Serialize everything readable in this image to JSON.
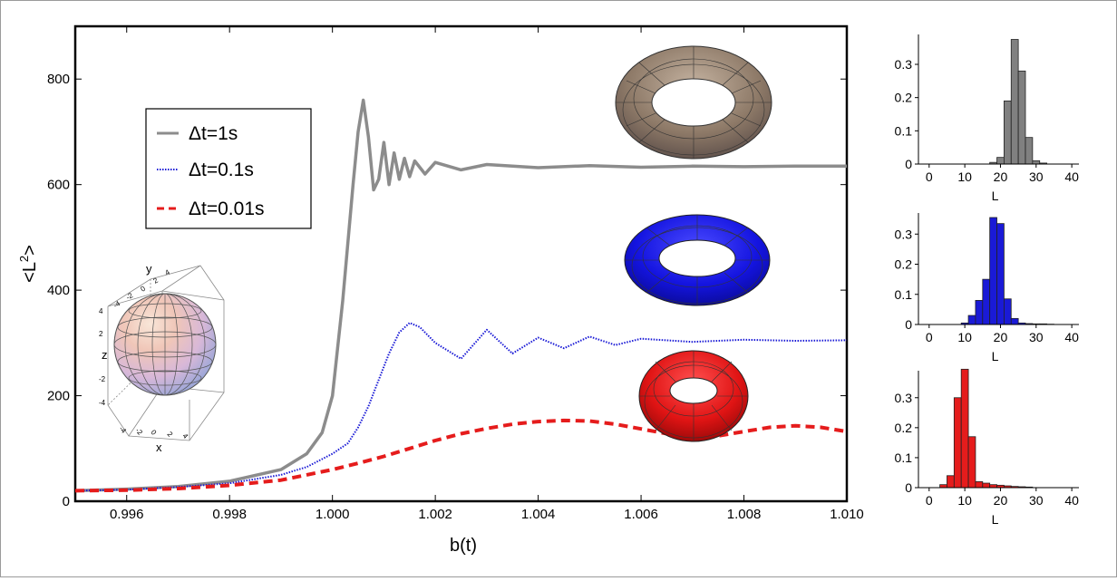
{
  "colors": {
    "series1": "#8c8c8c",
    "series2": "#1a1ad6",
    "series3": "#e51c1c",
    "torus_gray": "#8a7a6c",
    "torus_blue": "#1414e0",
    "torus_red": "#e01414"
  },
  "chart_data": [
    {
      "type": "line",
      "xlabel": "b(t)",
      "ylabel": "<L",
      "ylabel_sup": "2",
      "ylabel_end": ">",
      "xlim": [
        0.995,
        1.01
      ],
      "ylim": [
        0,
        900
      ],
      "xticks": [
        "0.996",
        "0.998",
        "1.000",
        "1.002",
        "1.004",
        "1.006",
        "1.008",
        "1.010"
      ],
      "yticks": [
        "0",
        "200",
        "400",
        "600",
        "800"
      ],
      "legend_position": "top-left",
      "series": [
        {
          "name": "Δt=1s",
          "style": "solid",
          "color": "#8c8c8c",
          "x": [
            0.995,
            0.996,
            0.997,
            0.998,
            0.999,
            0.9995,
            0.9998,
            1.0,
            1.0002,
            1.0004,
            1.0005,
            1.0006,
            1.0007,
            1.0008,
            1.0009,
            1.001,
            1.0011,
            1.0012,
            1.0013,
            1.0014,
            1.0015,
            1.0016,
            1.0018,
            1.002,
            1.0025,
            1.003,
            1.004,
            1.005,
            1.006,
            1.007,
            1.008,
            1.009,
            1.01
          ],
          "y": [
            20,
            23,
            28,
            38,
            60,
            90,
            130,
            200,
            380,
            600,
            700,
            760,
            690,
            590,
            610,
            680,
            600,
            660,
            610,
            650,
            615,
            645,
            620,
            642,
            628,
            638,
            632,
            636,
            633,
            635,
            634,
            635,
            635
          ]
        },
        {
          "name": "Δt=0.1s",
          "style": "dotted",
          "color": "#1a1ad6",
          "x": [
            0.995,
            0.996,
            0.997,
            0.998,
            0.999,
            0.9995,
            1.0,
            1.0003,
            1.0005,
            1.0007,
            1.0009,
            1.0011,
            1.0013,
            1.0015,
            1.0017,
            1.002,
            1.0025,
            1.003,
            1.0035,
            1.004,
            1.0045,
            1.005,
            1.0055,
            1.006,
            1.007,
            1.008,
            1.009,
            1.01
          ],
          "y": [
            20,
            22,
            27,
            34,
            50,
            65,
            90,
            110,
            140,
            180,
            230,
            280,
            320,
            338,
            330,
            300,
            270,
            325,
            280,
            310,
            290,
            312,
            296,
            308,
            302,
            306,
            304,
            305
          ]
        },
        {
          "name": "Δt=0.01s",
          "style": "dashed",
          "color": "#e51c1c",
          "x": [
            0.995,
            0.996,
            0.997,
            0.998,
            0.999,
            0.9995,
            1.0,
            1.0005,
            1.001,
            1.0015,
            1.002,
            1.0025,
            1.003,
            1.0035,
            1.004,
            1.0045,
            1.005,
            1.0055,
            1.006,
            1.0065,
            1.007,
            1.0075,
            1.008,
            1.0085,
            1.009,
            1.0095,
            1.01
          ],
          "y": [
            20,
            21,
            24,
            30,
            40,
            50,
            60,
            72,
            85,
            100,
            115,
            128,
            138,
            146,
            151,
            153,
            152,
            146,
            137,
            128,
            122,
            124,
            132,
            140,
            143,
            140,
            132
          ]
        }
      ]
    },
    {
      "type": "bar",
      "xlabel": "L",
      "color": "#808080",
      "xlim": [
        -3,
        42
      ],
      "ylim": [
        0,
        0.39
      ],
      "xticks": [
        "0",
        "10",
        "20",
        "30",
        "40"
      ],
      "yticks": [
        "0",
        "0.1",
        "0.2",
        "0.3"
      ],
      "x": [
        18,
        20,
        22,
        24,
        26,
        28,
        30,
        32
      ],
      "values": [
        0.005,
        0.02,
        0.19,
        0.375,
        0.28,
        0.08,
        0.01,
        0.003
      ]
    },
    {
      "type": "bar",
      "xlabel": "L",
      "color": "#1a1ad6",
      "xlim": [
        -3,
        42
      ],
      "ylim": [
        0,
        0.37
      ],
      "xticks": [
        "0",
        "10",
        "20",
        "30",
        "40"
      ],
      "yticks": [
        "0",
        "0.1",
        "0.2",
        "0.3"
      ],
      "x": [
        10,
        12,
        14,
        16,
        18,
        20,
        22,
        24,
        26,
        28,
        30,
        32,
        34
      ],
      "values": [
        0.005,
        0.03,
        0.08,
        0.15,
        0.355,
        0.335,
        0.085,
        0.02,
        0.005,
        0.003,
        0.002,
        0.002,
        0.001
      ]
    },
    {
      "type": "bar",
      "xlabel": "L",
      "color": "#e51c1c",
      "xlim": [
        -3,
        42
      ],
      "ylim": [
        0,
        0.39
      ],
      "xticks": [
        "0",
        "10",
        "20",
        "30",
        "40"
      ],
      "yticks": [
        "0",
        "0.1",
        "0.2",
        "0.3"
      ],
      "x": [
        4,
        6,
        8,
        10,
        12,
        14,
        16,
        18,
        20,
        22,
        24,
        26,
        28
      ],
      "values": [
        0.01,
        0.04,
        0.3,
        0.395,
        0.17,
        0.02,
        0.015,
        0.01,
        0.008,
        0.006,
        0.004,
        0.003,
        0.002
      ]
    }
  ],
  "sphere_inset": {
    "axis_x": "x",
    "axis_y": "y",
    "axis_z": "z",
    "ticks_x": [
      "-4",
      "-2",
      "0",
      "2",
      "4"
    ],
    "ticks_y": [
      "-4",
      "-2",
      "0",
      "2",
      "4"
    ],
    "ticks_z": [
      "4",
      "2",
      "0",
      "-2",
      "-4"
    ]
  }
}
